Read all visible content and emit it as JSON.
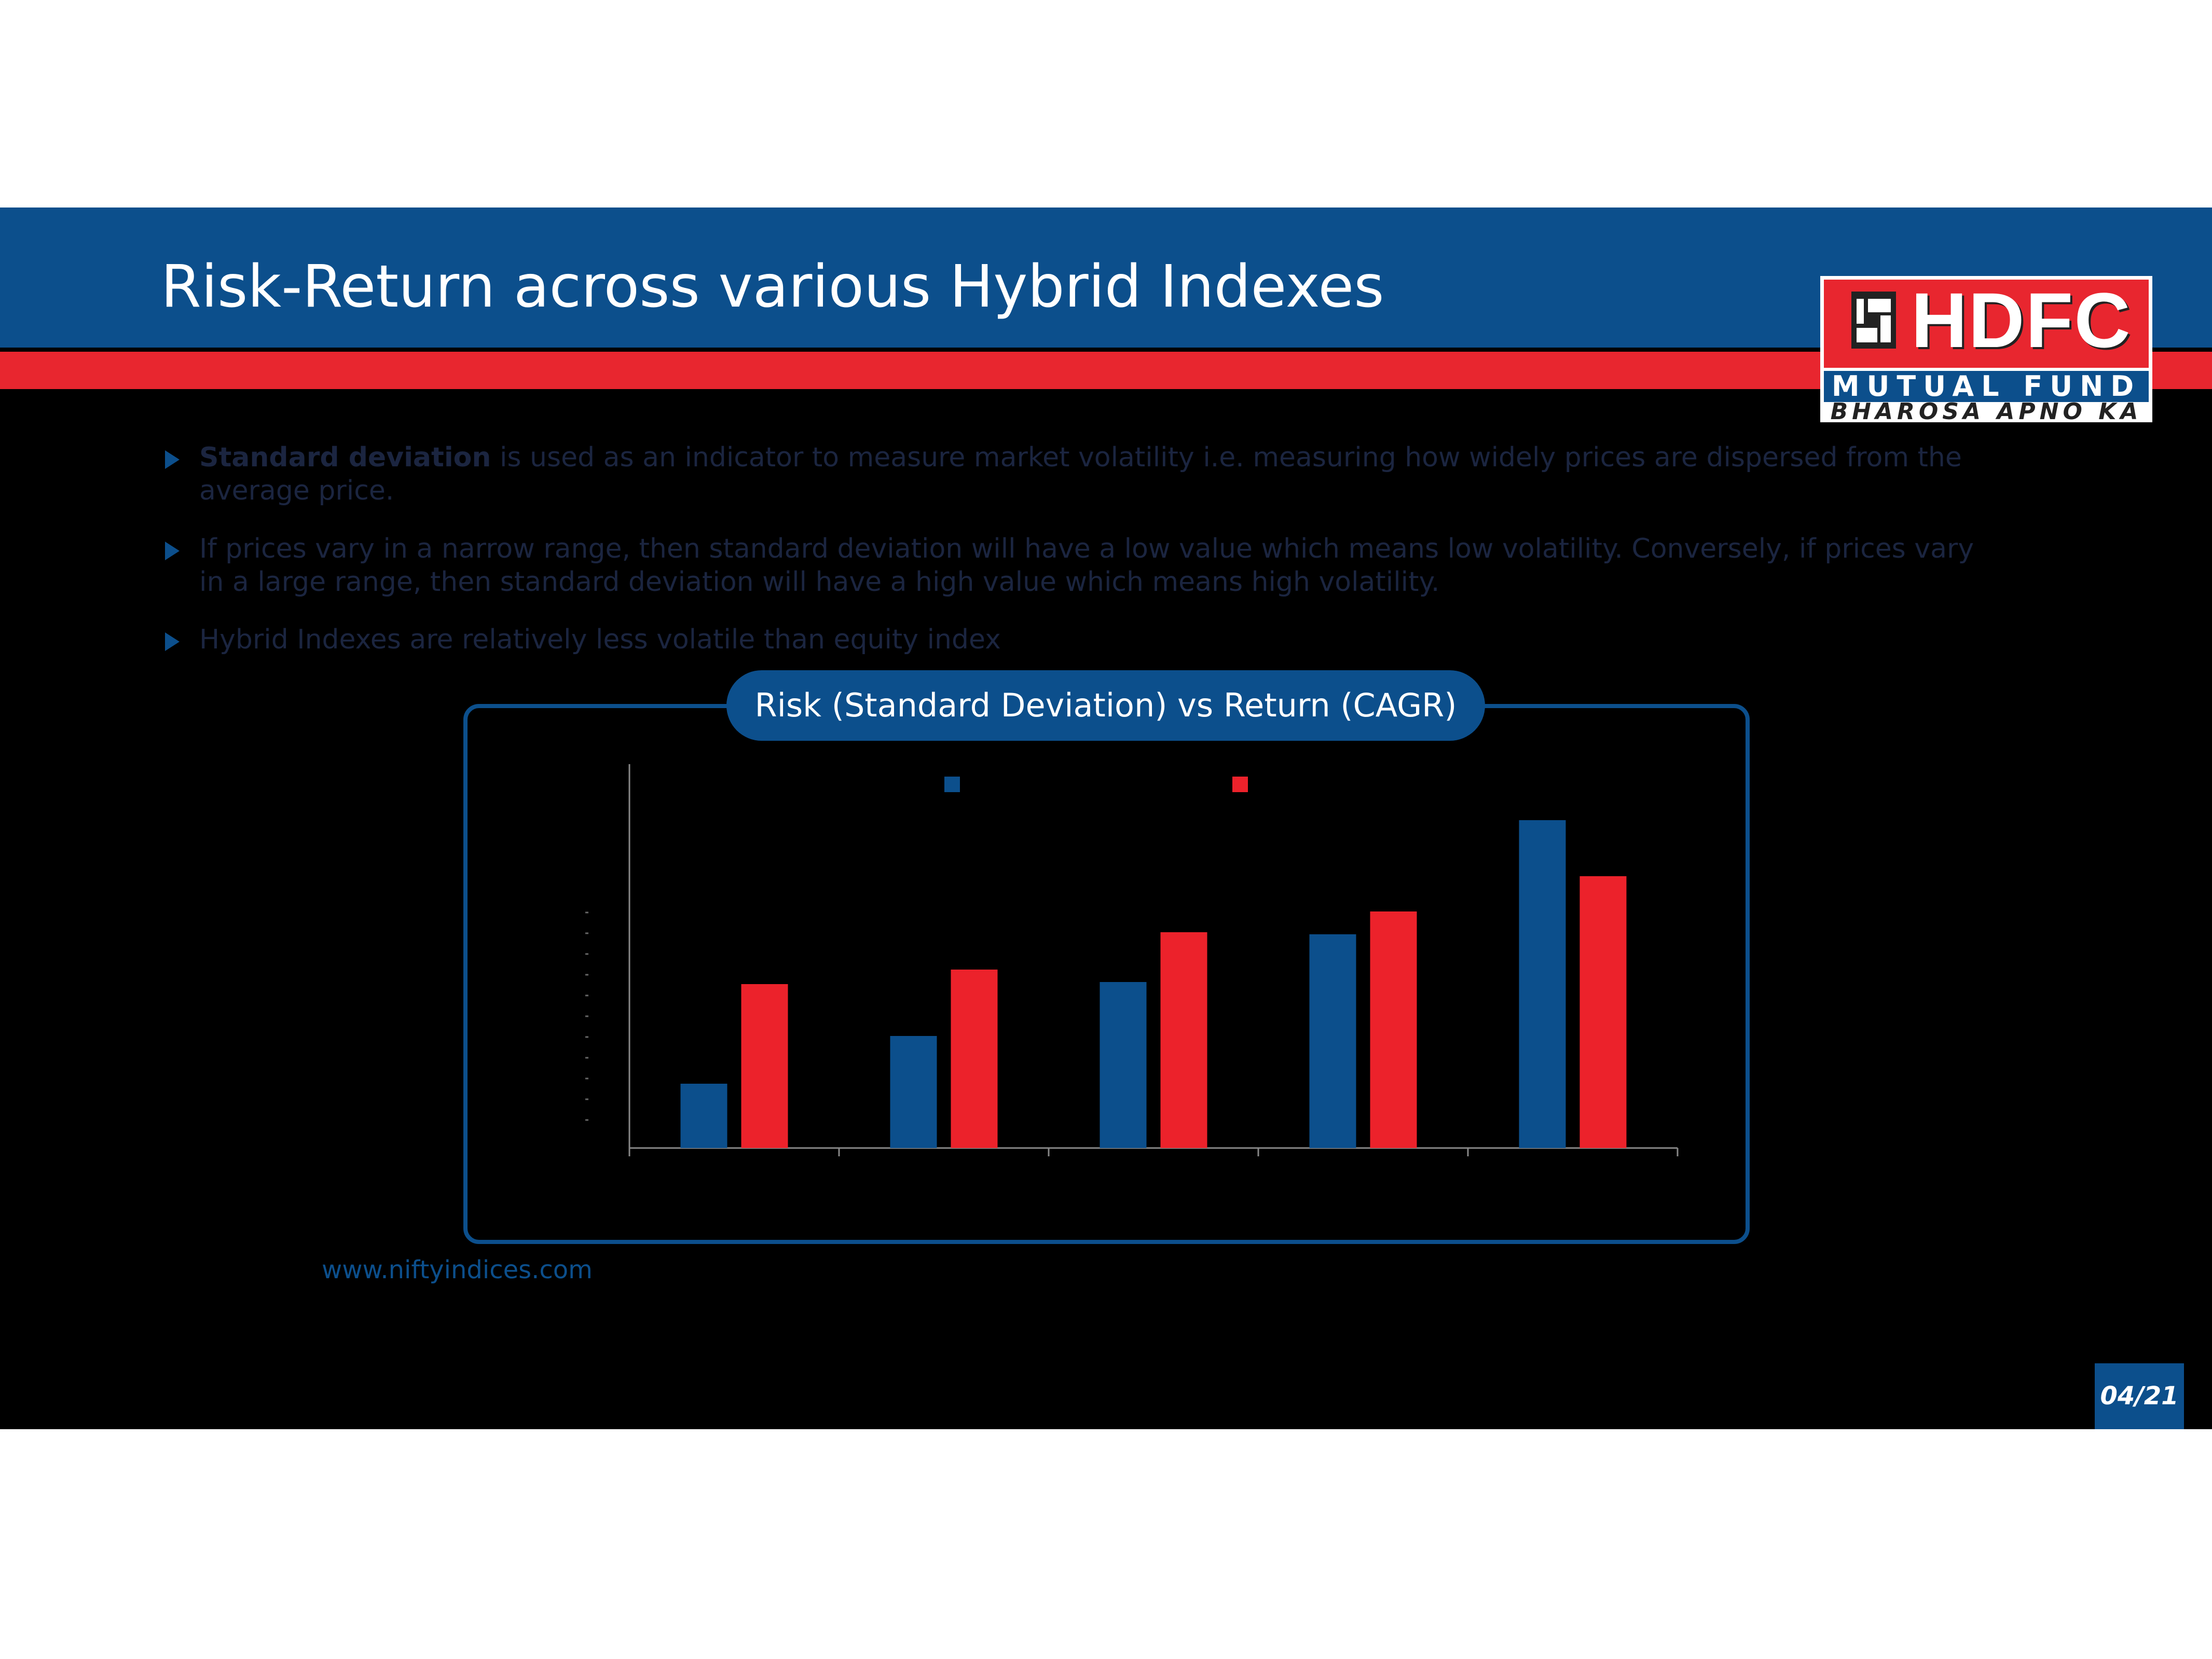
{
  "header": {
    "title": "Risk-Return across various Hybrid Indexes"
  },
  "logo": {
    "brand": "HDFC",
    "line2": "MUTUAL FUND",
    "tagline": "BHAROSA APNO KA"
  },
  "bullets": [
    {
      "bold": "Standard deviation",
      "text": " is used as an indicator to measure market volatility i.e. measuring how widely prices are dispersed from the average price."
    },
    {
      "bold": "",
      "text": "If prices vary in a narrow range, then standard deviation will have a low value which means low volatility. Conversely, if prices vary in a large range, then standard deviation will have a high value which means high volatility."
    },
    {
      "bold": "",
      "text": "Hybrid Indexes are relatively less volatile than equity index"
    }
  ],
  "source": "www.niftyindices.com",
  "page": "04/21",
  "colors": {
    "blue": "#0c4f8c",
    "red": "#ec222b"
  },
  "chart_data": {
    "type": "bar",
    "title": "Risk (Standard Deviation) vs Return (CAGR)",
    "categories": [
      "",
      "",
      "",
      "",
      ""
    ],
    "series": [
      {
        "color": "#0c4f8c",
        "values": [
          3.1,
          5.4,
          8.0,
          10.3,
          15.8
        ]
      },
      {
        "color": "#ec222b",
        "values": [
          7.9,
          8.6,
          10.4,
          11.4,
          13.1
        ]
      }
    ],
    "ylim": [
      0,
      18.5
    ],
    "grid": false,
    "legend": "top-center"
  }
}
